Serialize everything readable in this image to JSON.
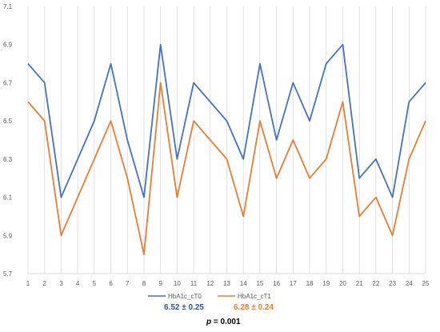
{
  "chart_data": {
    "type": "line",
    "categories": [
      "1",
      "2",
      "3",
      "4",
      "5",
      "6",
      "7",
      "8",
      "9",
      "10",
      "11",
      "12",
      "13",
      "14",
      "15",
      "16",
      "17",
      "18",
      "19",
      "20",
      "21",
      "22",
      "23",
      "24",
      "25"
    ],
    "series": [
      {
        "name": "HbA1c_cT0",
        "color": "#4472C4",
        "values": [
          6.8,
          6.7,
          6.1,
          6.3,
          6.5,
          6.8,
          6.4,
          6.1,
          6.9,
          6.3,
          6.7,
          6.6,
          6.5,
          6.3,
          6.8,
          6.4,
          6.7,
          6.5,
          6.8,
          6.9,
          6.2,
          6.3,
          6.1,
          6.6,
          6.7
        ]
      },
      {
        "name": "HbA1c_cT1",
        "color": "#ED7D31",
        "values": [
          6.6,
          6.5,
          5.9,
          6.1,
          6.3,
          6.5,
          6.2,
          5.8,
          6.7,
          6.1,
          6.5,
          6.4,
          6.3,
          6.0,
          6.5,
          6.2,
          6.4,
          6.2,
          6.3,
          6.6,
          6.0,
          6.1,
          5.9,
          6.3,
          6.5
        ]
      }
    ],
    "ylim": [
      5.7,
      7.1
    ],
    "yticks": [
      "5.7",
      "5.9",
      "6.1",
      "6.3",
      "6.5",
      "6.7",
      "6.9",
      "7.1"
    ],
    "grid": "vertical",
    "legend": "bottom"
  },
  "stats": {
    "t0_text": "6.52 ± 0.25",
    "t0_color": "#2F5597",
    "t1_text": "6.28 ± 0.24",
    "t1_color": "#ED7D31",
    "p_label": "p",
    "p_rest": " = 0.001"
  }
}
